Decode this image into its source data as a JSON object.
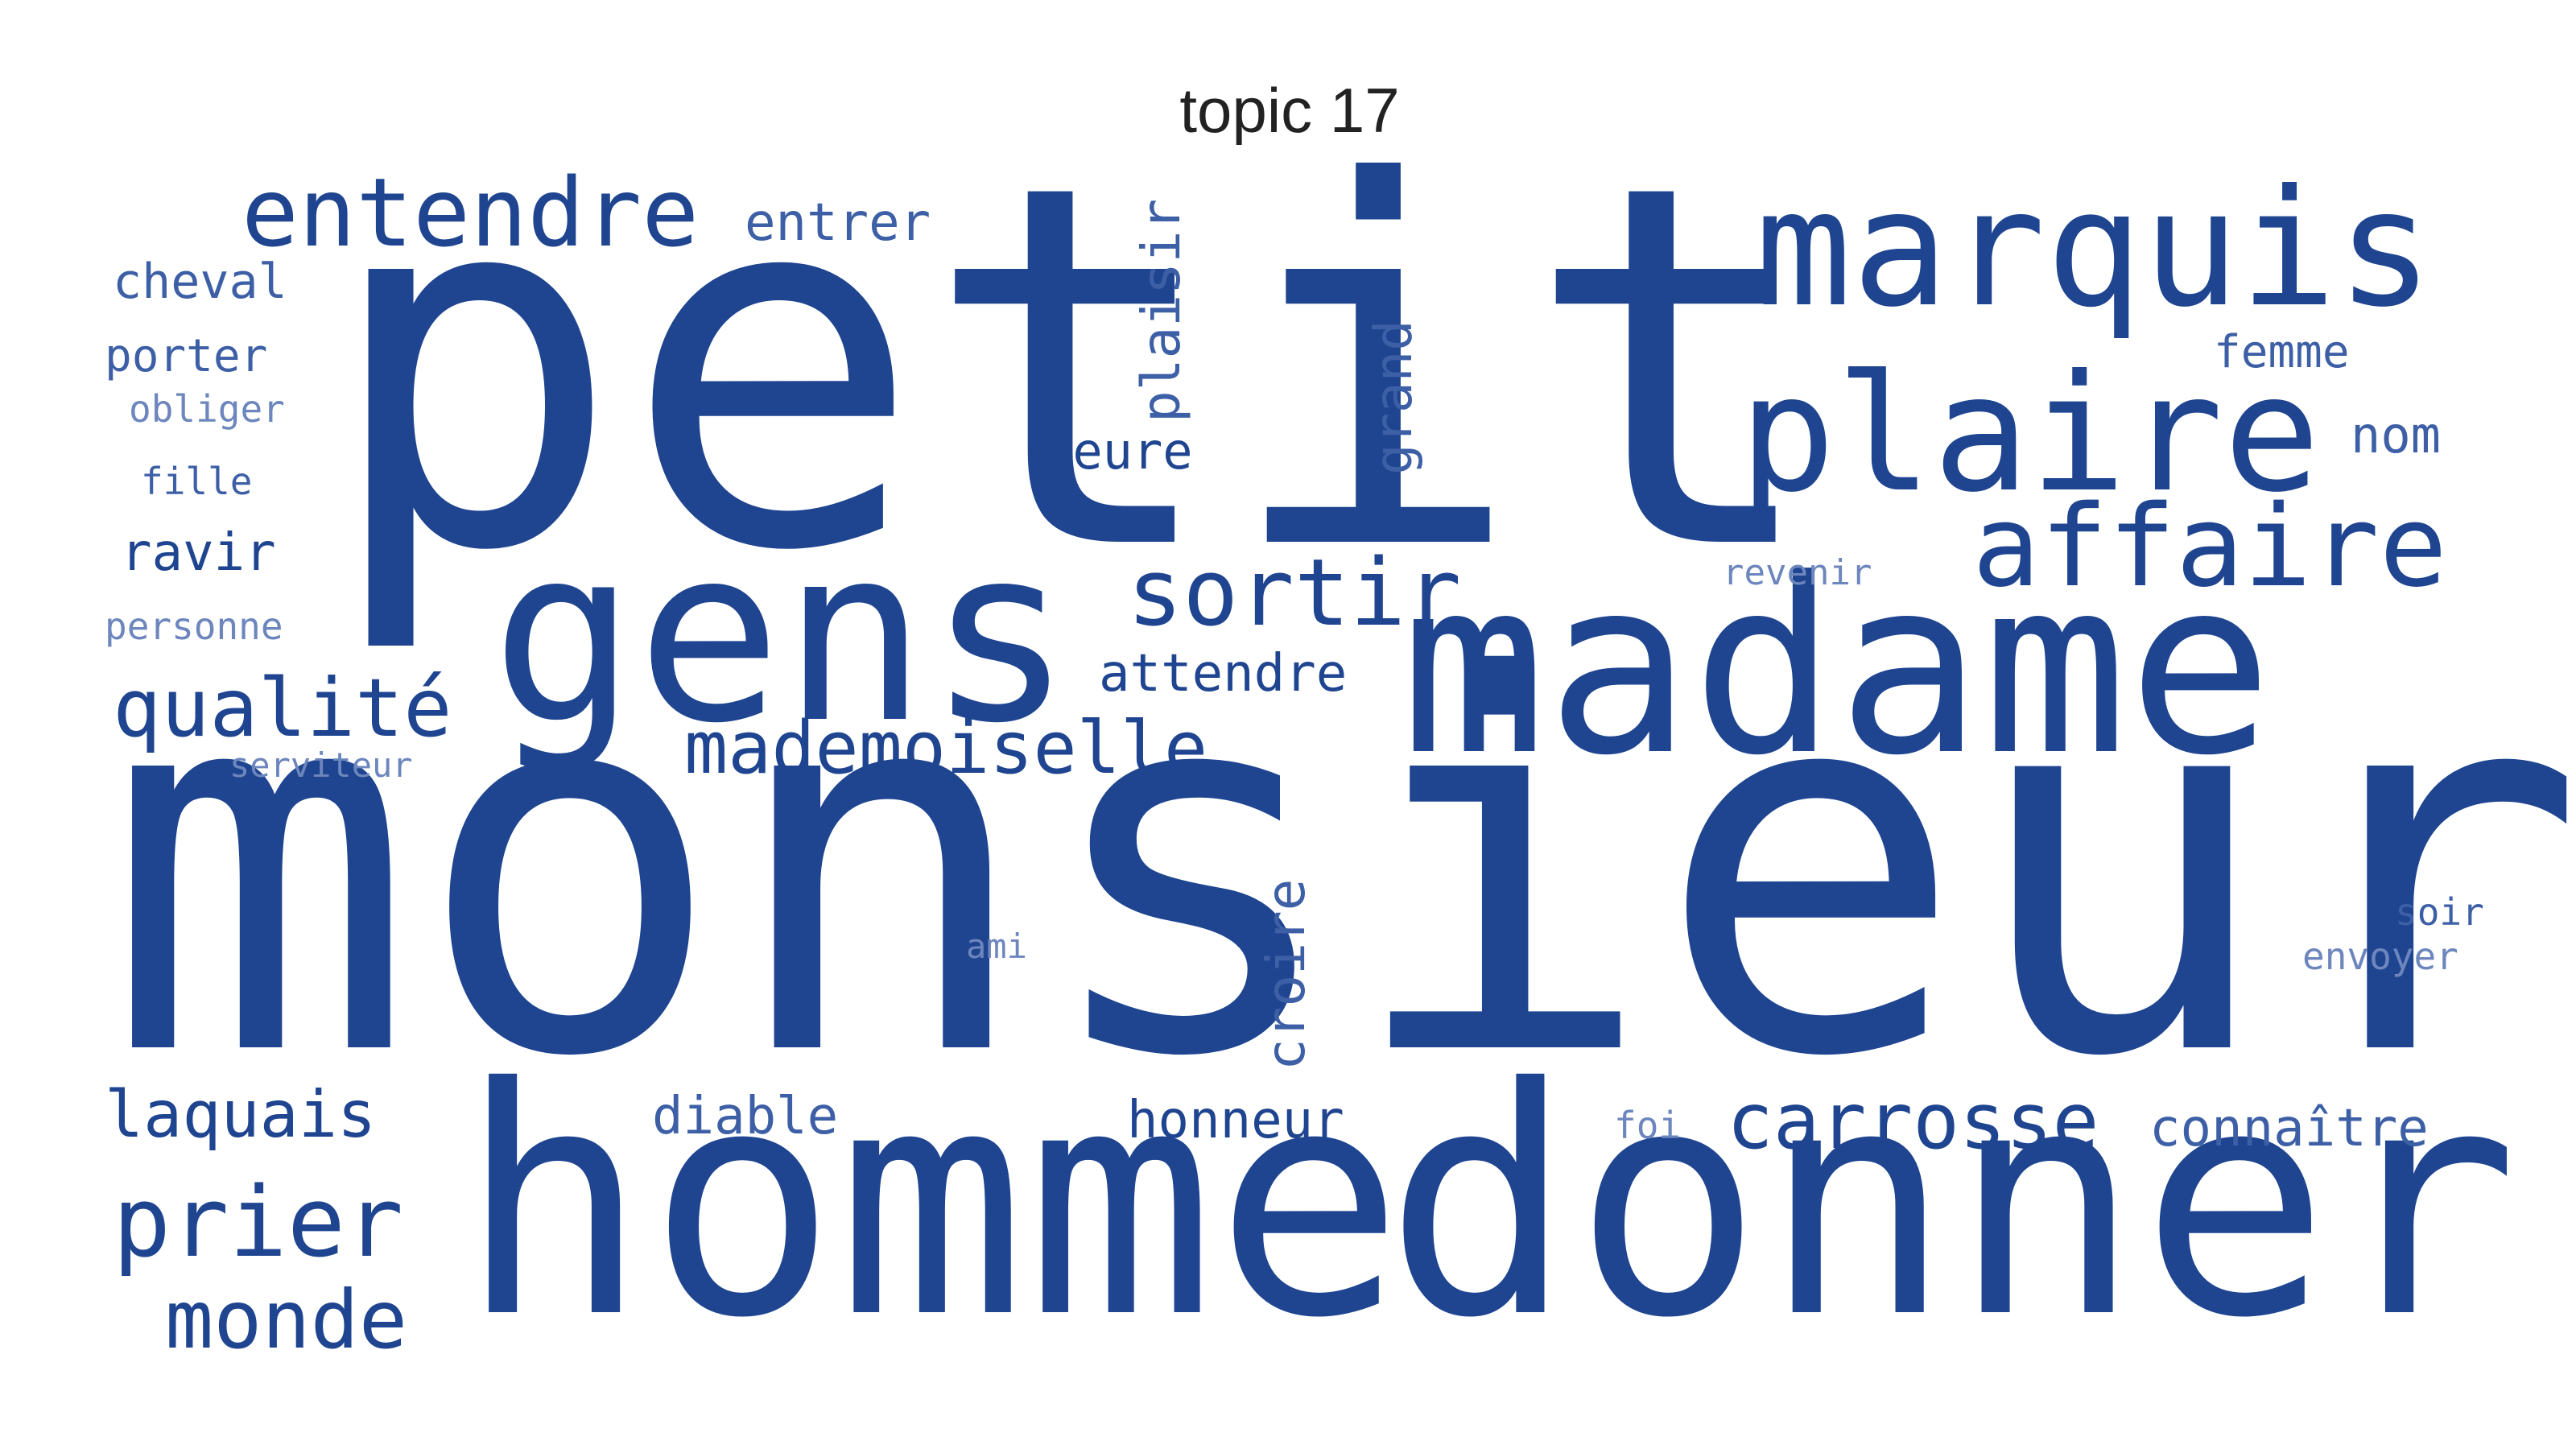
{
  "title": "topic 17",
  "colors": {
    "primary": "#1f4591",
    "secondary": "#3d5fa6",
    "light": "#6d86bd"
  },
  "words": {
    "petit": "petit",
    "monsieur": "monsieur",
    "homme": "homme",
    "donner": "donner",
    "madame": "madame",
    "gens": "gens",
    "marquis": "marquis",
    "plaire": "plaire",
    "affaire": "affaire",
    "entendre": "entendre",
    "sortir": "sortir",
    "mademoiselle": "mademoiselle",
    "qualite": "qualité",
    "prier": "prier",
    "monde": "monde",
    "laquais": "laquais",
    "carrosse": "carrosse",
    "entrer": "entrer",
    "cheval": "cheval",
    "porter": "porter",
    "obliger": "obliger",
    "fille": "fille",
    "ravir": "ravir",
    "personne": "personne",
    "serviteur": "serviteur",
    "heure": "heure",
    "plaisir": "plaisir",
    "grand": "grand",
    "femme": "femme",
    "nom": "nom",
    "revenir": "revenir",
    "attendre": "attendre",
    "croire": "croire",
    "ami": "ami",
    "diable": "diable",
    "honneur": "honneur",
    "foi": "foi",
    "connaitre": "connaître",
    "soir": "soir",
    "envoyer": "envoyer"
  }
}
